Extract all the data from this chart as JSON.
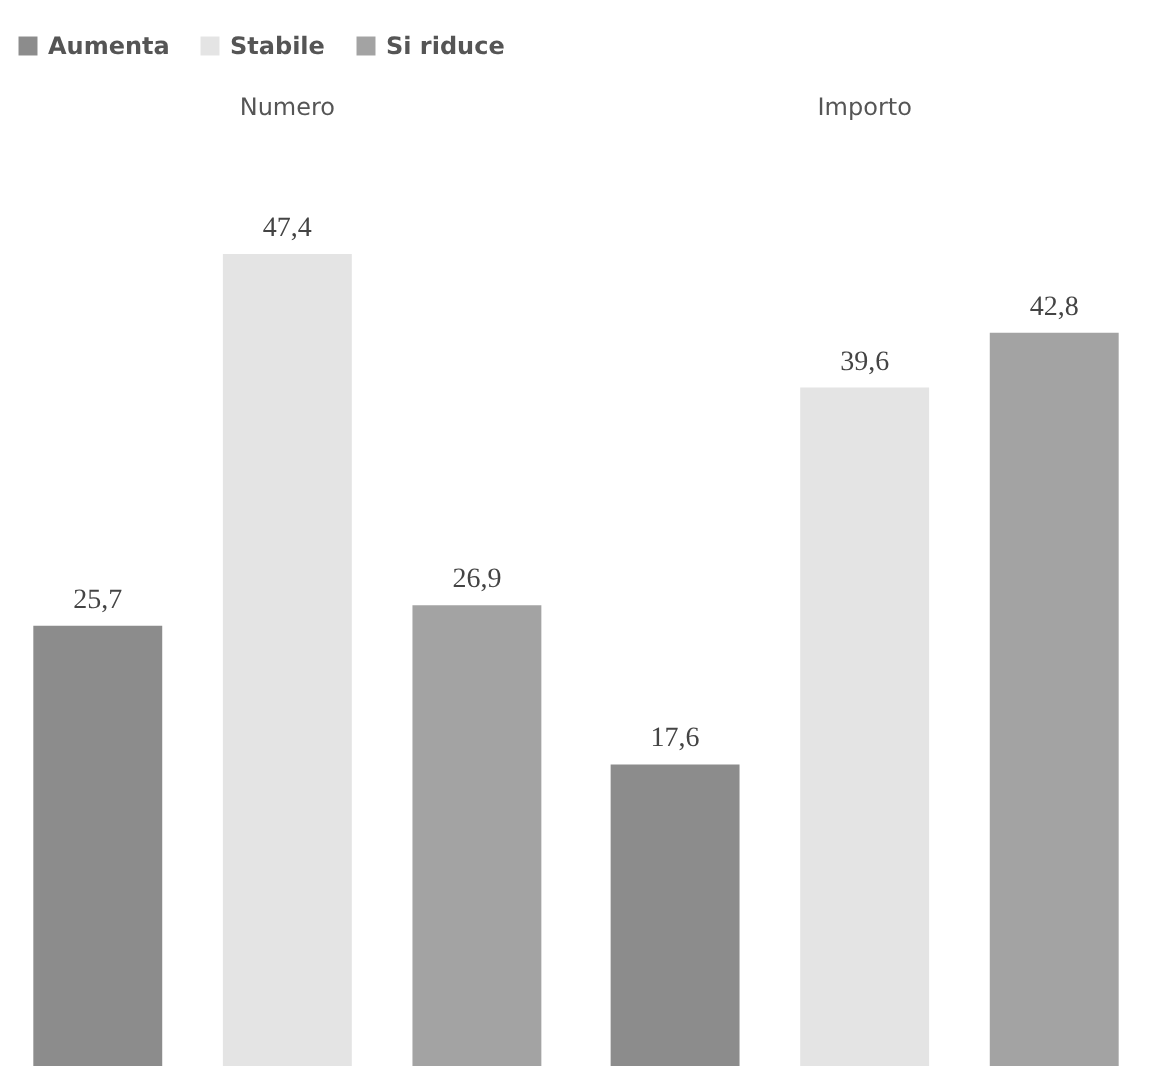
{
  "chart_data": {
    "type": "bar",
    "categories": [
      "Numero",
      "Importo"
    ],
    "series": [
      {
        "name": "Aumenta",
        "color": "#8c8c8c",
        "values": [
          25.7,
          17.6
        ],
        "value_labels": [
          "25,7",
          "17,6"
        ]
      },
      {
        "name": "Stabile",
        "color": "#e4e4e4",
        "values": [
          47.4,
          39.6
        ],
        "value_labels": [
          "47,4",
          "39,6"
        ]
      },
      {
        "name": "Si riduce",
        "color": "#a3a3a3",
        "values": [
          26.9,
          42.8
        ],
        "value_labels": [
          "26,9",
          "42,8"
        ]
      }
    ],
    "legend": "top left",
    "grid": false
  }
}
